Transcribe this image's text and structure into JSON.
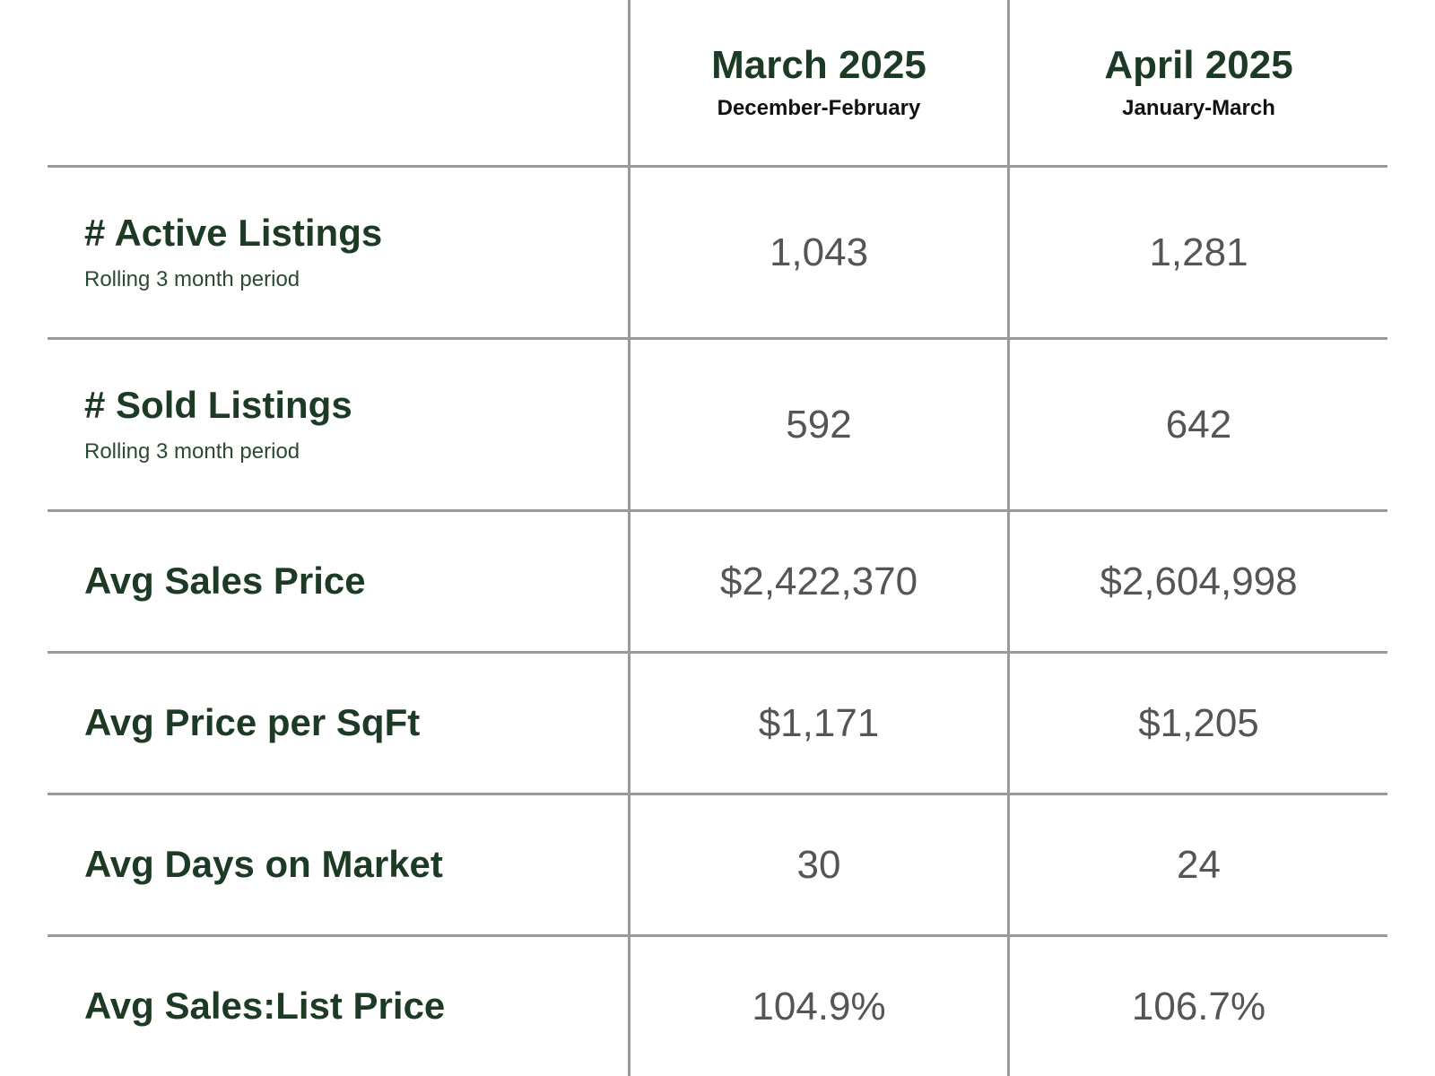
{
  "columns": [
    {
      "title": "March 2025",
      "subtitle": "December-February"
    },
    {
      "title": "April 2025",
      "subtitle": "January-March"
    }
  ],
  "rows": [
    {
      "label": "# Active Listings",
      "sublabel": "Rolling 3 month period",
      "values": [
        "1,043",
        "1,281"
      ]
    },
    {
      "label": "# Sold Listings",
      "sublabel": "Rolling 3 month period",
      "values": [
        "592",
        "642"
      ]
    },
    {
      "label": "Avg Sales Price",
      "sublabel": "",
      "values": [
        "$2,422,370",
        "$2,604,998"
      ]
    },
    {
      "label": "Avg Price per SqFt",
      "sublabel": "",
      "values": [
        "$1,171",
        "$1,205"
      ]
    },
    {
      "label": "Avg Days on Market",
      "sublabel": "",
      "values": [
        "30",
        "24"
      ]
    },
    {
      "label": "Avg Sales:List Price",
      "sublabel": "",
      "values": [
        "104.9%",
        "106.7%"
      ]
    }
  ],
  "colors": {
    "heading_green": "#1d3a24",
    "value_gray": "#555555",
    "grid_gray": "#9a9a9a"
  }
}
